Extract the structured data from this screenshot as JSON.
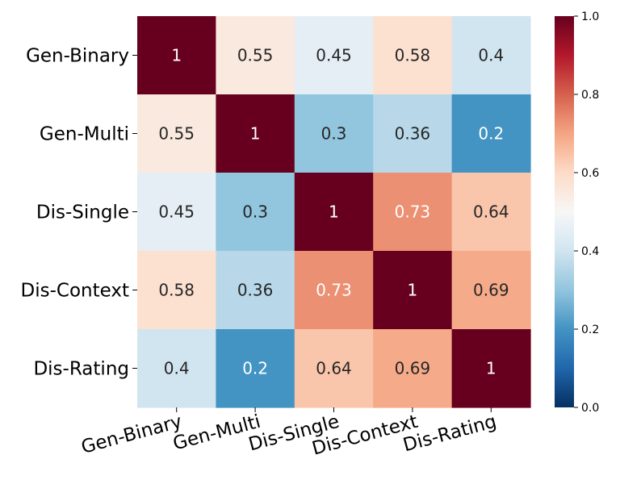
{
  "chart_data": {
    "type": "heatmap",
    "row_labels": [
      "Gen-Binary",
      "Gen-Multi",
      "Dis-Single",
      "Dis-Context",
      "Dis-Rating"
    ],
    "col_labels": [
      "Gen-Binary",
      "Gen-Multi",
      "Dis-Single",
      "Dis-Context",
      "Dis-Rating"
    ],
    "values": [
      [
        1,
        0.55,
        0.45,
        0.58,
        0.4
      ],
      [
        0.55,
        1,
        0.3,
        0.36,
        0.2
      ],
      [
        0.45,
        0.3,
        1,
        0.73,
        0.64
      ],
      [
        0.58,
        0.36,
        0.73,
        1,
        0.69
      ],
      [
        0.4,
        0.2,
        0.64,
        0.69,
        1
      ]
    ],
    "vmin": 0,
    "vmax": 1,
    "colormap": "RdBu_r",
    "colorbar": {
      "ticks": [
        0.0,
        0.2,
        0.4,
        0.6,
        0.8,
        1.0
      ],
      "tick_labels": [
        "0.0",
        "0.2",
        "0.4",
        "0.6",
        "0.8",
        "1.0"
      ]
    },
    "annotated": true,
    "x_tick_rotation": "angled"
  }
}
